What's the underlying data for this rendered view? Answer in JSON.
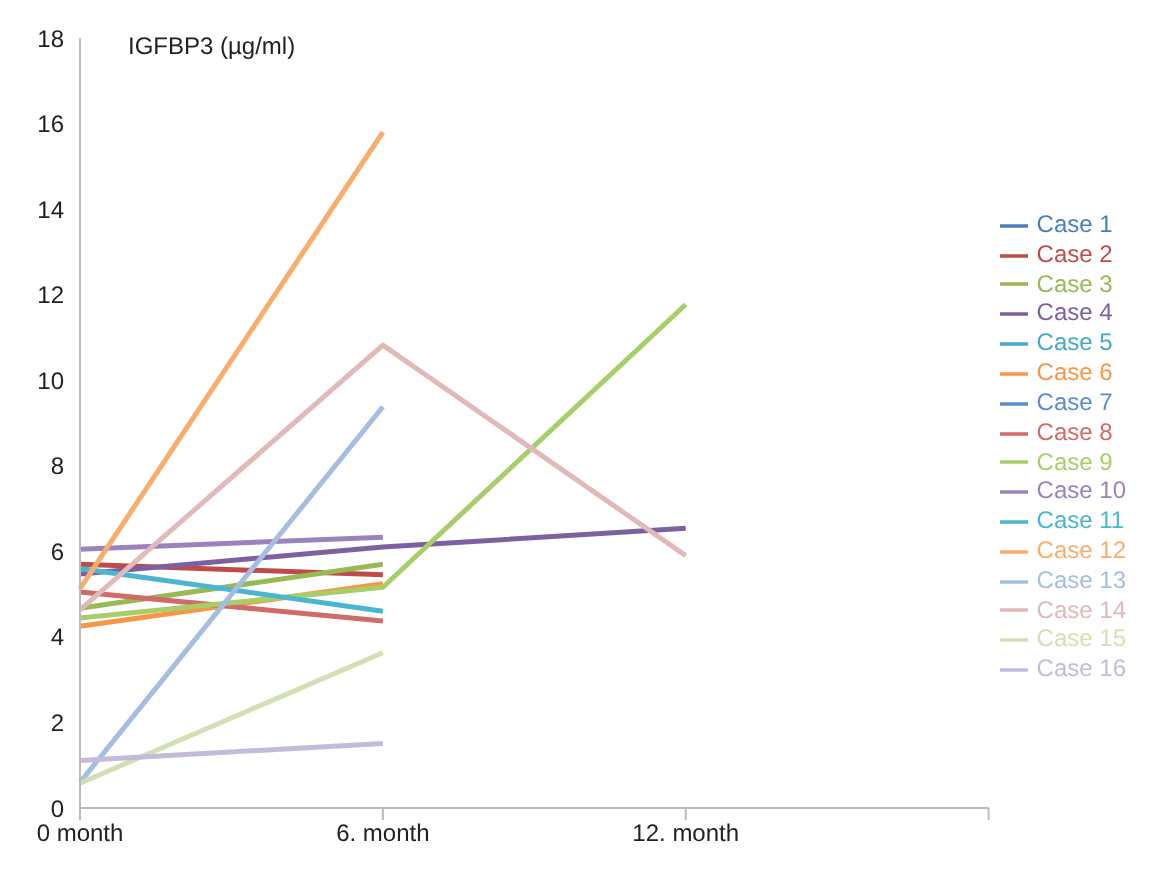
{
  "chart_data": {
    "type": "line",
    "ylabel": "IGFBP3 (µg/ml)",
    "categories": [
      "0 month",
      "6. month",
      "12. month",
      null
    ],
    "ylim": [
      0,
      18
    ],
    "yticks": [
      0,
      2,
      4,
      6,
      8,
      10,
      12,
      14,
      16,
      18
    ],
    "grid": false,
    "legend": "right",
    "marker": "none",
    "line_style": "solid",
    "series": [
      {
        "name": "Case 1",
        "color": "#4a7ebb",
        "values": [
          null,
          null,
          null,
          null
        ]
      },
      {
        "name": "Case 2",
        "color": "#be4b48",
        "values": [
          5.7,
          5.45,
          null,
          null
        ]
      },
      {
        "name": "Case 3",
        "color": "#98b954",
        "values": [
          4.67,
          5.7,
          null,
          null
        ]
      },
      {
        "name": "Case 4",
        "color": "#7d60a0",
        "values": [
          5.47,
          6.1,
          6.54,
          null
        ]
      },
      {
        "name": "Case 5",
        "color": "#46aac5",
        "values": [
          null,
          null,
          null,
          null
        ]
      },
      {
        "name": "Case 6",
        "color": "#f79646",
        "values": [
          4.25,
          5.24,
          null,
          null
        ]
      },
      {
        "name": "Case 7",
        "color": "#5c8bd0",
        "values": [
          null,
          null,
          null,
          null
        ]
      },
      {
        "name": "Case 8",
        "color": "#d06b68",
        "values": [
          5.05,
          4.37,
          null,
          null
        ]
      },
      {
        "name": "Case 9",
        "color": "#a8ce6a",
        "values": [
          4.44,
          5.16,
          11.77,
          null
        ]
      },
      {
        "name": "Case 10",
        "color": "#9b82bc",
        "values": [
          6.05,
          6.33,
          null,
          null
        ]
      },
      {
        "name": "Case 11",
        "color": "#4bb6cf",
        "values": [
          5.6,
          4.6,
          null,
          null
        ]
      },
      {
        "name": "Case 12",
        "color": "#f9ad6c",
        "values": [
          5.13,
          15.8,
          null,
          null
        ]
      },
      {
        "name": "Case 13",
        "color": "#a5bde0",
        "values": [
          0.6,
          9.38,
          null,
          null
        ]
      },
      {
        "name": "Case 14",
        "color": "#e0b9b8",
        "values": [
          4.63,
          10.82,
          5.9,
          null
        ]
      },
      {
        "name": "Case 15",
        "color": "#d3e0b3",
        "values": [
          0.58,
          3.63,
          null,
          null
        ]
      },
      {
        "name": "Case 16",
        "color": "#c6badb",
        "values": [
          1.11,
          1.51,
          null,
          null
        ]
      }
    ]
  }
}
